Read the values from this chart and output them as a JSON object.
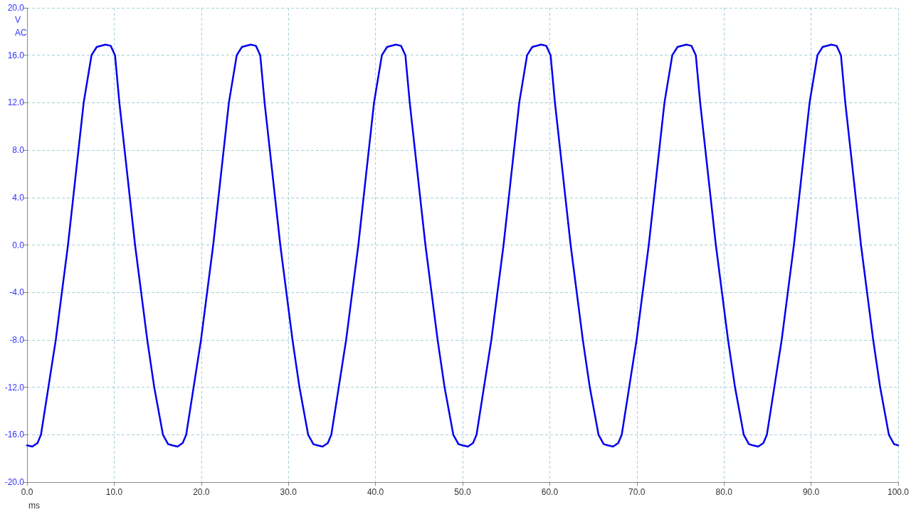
{
  "chart_data": {
    "type": "line",
    "xlabel": "ms",
    "ylabel": "V",
    "annotations": [
      "AC"
    ],
    "x": [
      0,
      0.6,
      1.2,
      1.6,
      2.45,
      3.3,
      4.0,
      4.7,
      5.3,
      5.9,
      6.5,
      7.4,
      8.0,
      9.0,
      9.6,
      10.1,
      10.6,
      11.2,
      11.8,
      12.4,
      13.1,
      13.8,
      14.6,
      15.6,
      16.2,
      16.67,
      17.27,
      17.87,
      18.27,
      19.12,
      19.97,
      20.67,
      21.37,
      21.97,
      22.57,
      23.17,
      24.07,
      24.67,
      25.67,
      26.27,
      26.77,
      27.27,
      27.87,
      28.47,
      29.07,
      29.77,
      30.47,
      31.27,
      32.27,
      32.87,
      33.33,
      33.93,
      34.53,
      34.93,
      35.78,
      36.63,
      37.33,
      38.03,
      38.63,
      39.23,
      39.83,
      40.73,
      41.33,
      42.33,
      42.93,
      43.43,
      43.93,
      44.53,
      45.13,
      45.73,
      46.43,
      47.13,
      47.93,
      48.93,
      49.53,
      50,
      50.6,
      51.2,
      51.6,
      52.45,
      53.3,
      54,
      54.7,
      55.3,
      55.9,
      56.5,
      57.4,
      58,
      59,
      59.6,
      60.1,
      60.6,
      61.2,
      61.8,
      62.4,
      63.1,
      63.8,
      64.6,
      65.6,
      66.2,
      66.67,
      67.27,
      67.87,
      68.27,
      69.12,
      69.97,
      70.67,
      71.37,
      71.97,
      72.57,
      73.17,
      74.07,
      74.67,
      75.67,
      76.27,
      76.77,
      77.27,
      77.87,
      78.47,
      79.07,
      79.77,
      80.47,
      81.27,
      82.27,
      82.87,
      83.33,
      83.93,
      84.53,
      84.93,
      85.78,
      86.63,
      87.33,
      88.03,
      88.63,
      89.23,
      89.83,
      90.73,
      91.33,
      92.33,
      92.93,
      93.43,
      93.93,
      94.53,
      95.13,
      95.73,
      96.43,
      97.13,
      97.93,
      98.93,
      99.53,
      100
    ],
    "series": [
      {
        "color": "#0000ee",
        "values": [
          -16.9,
          -17.0,
          -16.7,
          -16,
          -12,
          -8,
          -4,
          0,
          4,
          8,
          12,
          16,
          16.7,
          16.9,
          16.8,
          16,
          12,
          8,
          4,
          0,
          -4,
          -8,
          -12,
          -16,
          -16.8,
          -16.9,
          -17.0,
          -16.7,
          -16,
          -12,
          -8,
          -4,
          0,
          4,
          8,
          12,
          16,
          16.7,
          16.9,
          16.8,
          16,
          12,
          8,
          4,
          0,
          -4,
          -8,
          -12,
          -16,
          -16.8,
          -16.9,
          -17.0,
          -16.7,
          -16,
          -12,
          -8,
          -4,
          0,
          4,
          8,
          12,
          16,
          16.7,
          16.9,
          16.8,
          16,
          12,
          8,
          4,
          0,
          -4,
          -8,
          -12,
          -16,
          -16.8,
          -16.9,
          -17.0,
          -16.7,
          -16,
          -12,
          -8,
          -4,
          0,
          4,
          8,
          12,
          16,
          16.7,
          16.9,
          16.8,
          16,
          12,
          8,
          4,
          0,
          -4,
          -8,
          -12,
          -16,
          -16.8,
          -16.9,
          -17.0,
          -16.7,
          -16,
          -12,
          -8,
          -4,
          0,
          4,
          8,
          12,
          16,
          16.7,
          16.9,
          16.8,
          16,
          12,
          8,
          4,
          0,
          -4,
          -8,
          -12,
          -16,
          -16.8,
          -16.9,
          -17.0,
          -16.7,
          -16,
          -12,
          -8,
          -4,
          0,
          4,
          8,
          12,
          16,
          16.7,
          16.9,
          16.8,
          16,
          12,
          8,
          4,
          0,
          -4,
          -8,
          -12,
          -16,
          -16.8,
          -16.9
        ]
      }
    ],
    "xlim": [
      0,
      100
    ],
    "xticks": [
      {
        "value": 0,
        "label": "0.0"
      },
      {
        "value": 10,
        "label": "10.0"
      },
      {
        "value": 20,
        "label": "20.0"
      },
      {
        "value": 30,
        "label": "30.0"
      },
      {
        "value": 40,
        "label": "40.0"
      },
      {
        "value": 50,
        "label": "50.0"
      },
      {
        "value": 60,
        "label": "60.0"
      },
      {
        "value": 70,
        "label": "70.0"
      },
      {
        "value": 80,
        "label": "80.0"
      },
      {
        "value": 90,
        "label": "90.0"
      },
      {
        "value": 100,
        "label": "100.0"
      }
    ],
    "ylim": [
      -20,
      20
    ],
    "yticks": [
      {
        "value": -20,
        "label": "-20.0"
      },
      {
        "value": -16,
        "label": "-16.0"
      },
      {
        "value": -12,
        "label": "-12.0"
      },
      {
        "value": -8,
        "label": "-8.0"
      },
      {
        "value": -4,
        "label": "-4.0"
      },
      {
        "value": 0,
        "label": "0.0"
      },
      {
        "value": 4,
        "label": "4.0"
      },
      {
        "value": 8,
        "label": "8.0"
      },
      {
        "value": 12,
        "label": "12.0"
      },
      {
        "value": 16,
        "label": "16.0"
      },
      {
        "value": 20,
        "label": "20.0"
      }
    ],
    "grid": true,
    "marker": "none",
    "line_style": "solid"
  }
}
